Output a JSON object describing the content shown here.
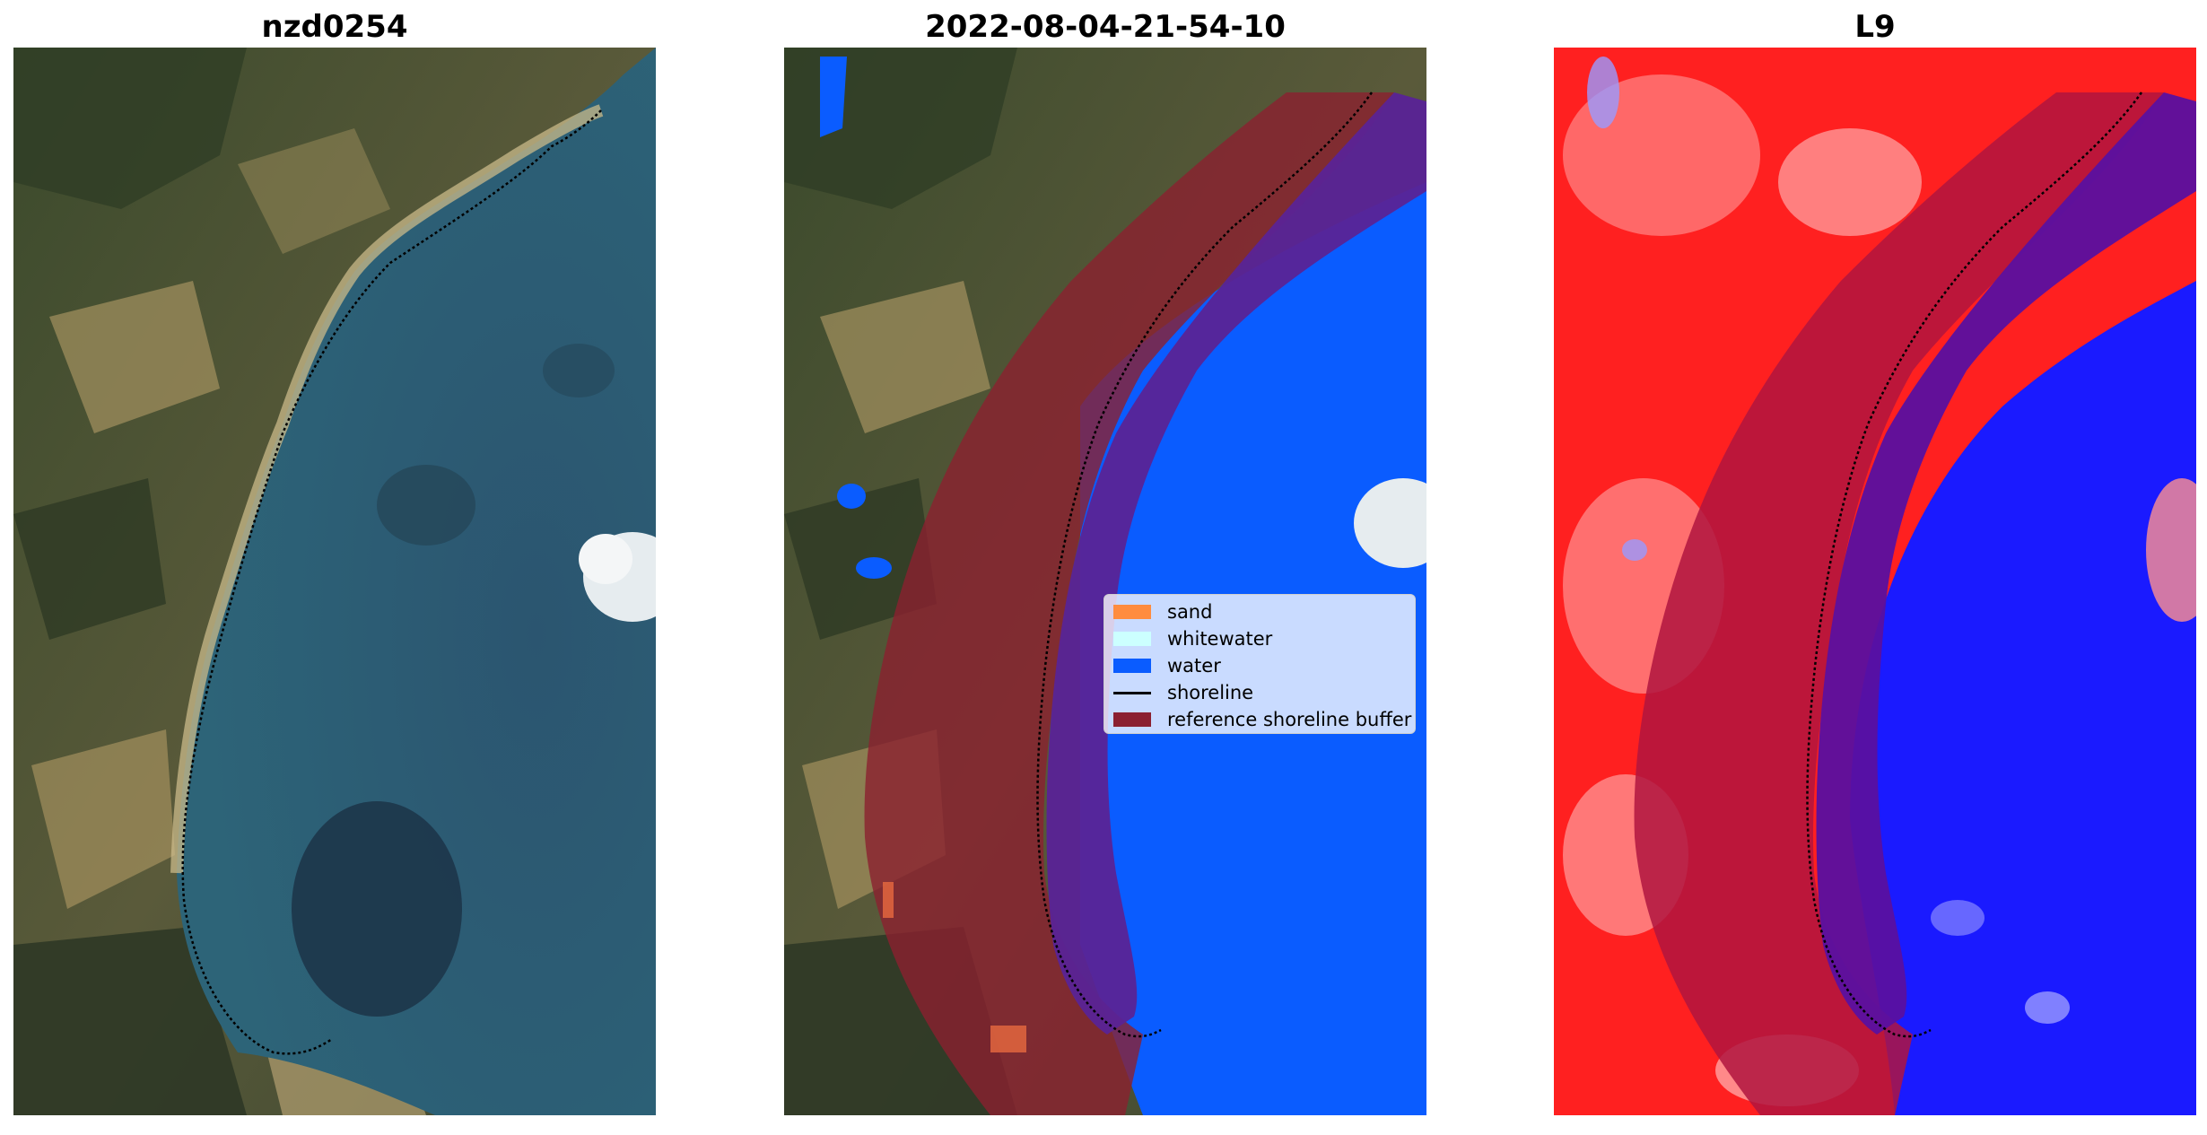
{
  "panels": [
    {
      "title": "nzd0254",
      "kind": "rgb-composite"
    },
    {
      "title": "2022-08-04-21-54-10",
      "kind": "classified"
    },
    {
      "title": "L9",
      "kind": "index-map"
    }
  ],
  "legend": {
    "items": [
      {
        "label": "sand",
        "color": "#ff8c3f",
        "type": "patch"
      },
      {
        "label": "whitewater",
        "color": "#ccffff",
        "type": "patch"
      },
      {
        "label": "water",
        "color": "#0a5cff",
        "type": "patch"
      },
      {
        "label": "shoreline",
        "color": "#000000",
        "type": "line"
      },
      {
        "label": "reference shoreline buffer",
        "color": "#8b2030",
        "type": "patch"
      }
    ]
  },
  "colors": {
    "land_dark": "#3f4f2f",
    "land_tan": "#9a8a5a",
    "sea": "#2e5a70",
    "water_class": "#0a5cff",
    "buffer": "#8b2030",
    "buffer_over_water": "#5a2396",
    "index_red": "#ff1a1a",
    "index_blue": "#1010ff"
  }
}
